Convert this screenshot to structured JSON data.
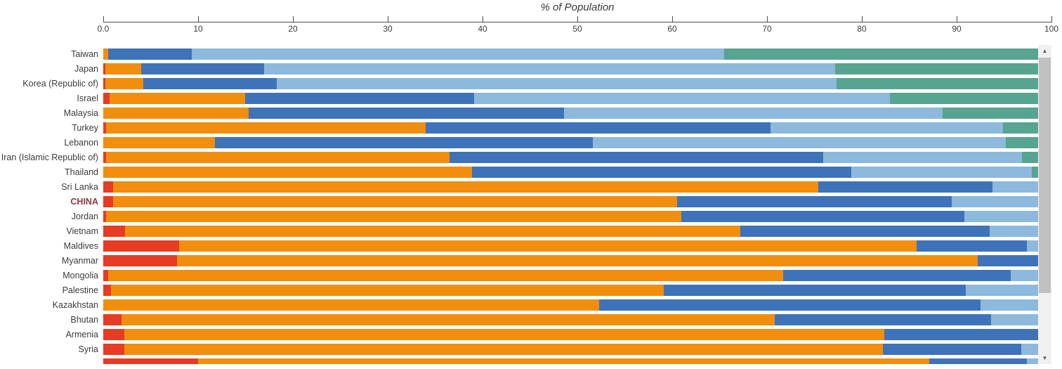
{
  "title": "% of Population",
  "axis": {
    "min": 0,
    "max": 100,
    "tick_labels": [
      "0.0",
      "10",
      "20",
      "30",
      "40",
      "50",
      "60",
      "70",
      "80",
      "90",
      "100"
    ]
  },
  "colors": {
    "red": "#e73b23",
    "orange": "#f28e0d",
    "dark_blue": "#3e73b9",
    "light_blue": "#8cb9dc",
    "green": "#57a491",
    "highlight_label": "#8b3a3e",
    "label": "#3b3b3b",
    "scrollbar_track": "#f1f1f1",
    "scrollbar_thumb": "#c1c1c1"
  },
  "scrollbar": {
    "up_icon": "▲",
    "down_icon": "▼"
  },
  "chart_data": {
    "type": "bar",
    "stacked": true,
    "orientation": "horizontal",
    "title": "% of Population",
    "xlabel": "% of Population",
    "xlim": [
      0,
      100
    ],
    "grid": false,
    "legend": "none (no legend visible)",
    "segments": [
      "red",
      "orange",
      "dark-blue",
      "light-blue",
      "green"
    ],
    "segment_colors": [
      "#e73b23",
      "#f28e0d",
      "#3e73b9",
      "#8cb9dc",
      "#57a491"
    ],
    "rows": [
      {
        "label": "Taiwan",
        "highlight": false,
        "values": [
          0,
          0.5,
          8.8,
          56.2,
          33.1
        ]
      },
      {
        "label": "Japan",
        "highlight": false,
        "values": [
          0.2,
          3.8,
          13.0,
          60.2,
          21.4
        ]
      },
      {
        "label": "Korea (Republic of)",
        "highlight": false,
        "values": [
          0.2,
          4.0,
          14.1,
          59.0,
          21.3
        ]
      },
      {
        "label": "Israel",
        "highlight": false,
        "values": [
          0.7,
          14.3,
          24.1,
          43.9,
          15.6
        ]
      },
      {
        "label": "Malaysia",
        "highlight": false,
        "values": [
          0,
          15.3,
          33.3,
          39.9,
          10.1
        ]
      },
      {
        "label": "Turkey",
        "highlight": false,
        "values": [
          0.3,
          33.7,
          36.4,
          24.5,
          3.7
        ]
      },
      {
        "label": "Lebanon",
        "highlight": false,
        "values": [
          0,
          11.8,
          39.8,
          43.6,
          3.4
        ]
      },
      {
        "label": "Iran (Islamic Republic of)",
        "highlight": false,
        "values": [
          0.3,
          36.2,
          39.4,
          21.0,
          1.7
        ]
      },
      {
        "label": "Thailand",
        "highlight": false,
        "values": [
          0,
          38.9,
          40.0,
          19.0,
          0.7
        ]
      },
      {
        "label": "Sri Lanka",
        "highlight": false,
        "values": [
          1.0,
          74.4,
          18.4,
          4.8,
          0
        ]
      },
      {
        "label": "CHINA",
        "highlight": true,
        "values": [
          1.0,
          59.5,
          29.0,
          9.1,
          0
        ]
      },
      {
        "label": "Jordan",
        "highlight": false,
        "values": [
          0.3,
          60.7,
          29.8,
          7.8,
          0
        ]
      },
      {
        "label": "Vietnam",
        "highlight": false,
        "values": [
          2.3,
          64.9,
          26.3,
          5.1,
          0
        ]
      },
      {
        "label": "Maldives",
        "highlight": false,
        "values": [
          8.0,
          77.8,
          11.6,
          1.2,
          0
        ]
      },
      {
        "label": "Myanmar",
        "highlight": false,
        "values": [
          7.8,
          84.4,
          6.4,
          0,
          0
        ]
      },
      {
        "label": "Mongolia",
        "highlight": false,
        "values": [
          0.5,
          71.2,
          24.0,
          2.9,
          0
        ]
      },
      {
        "label": "Palestine",
        "highlight": false,
        "values": [
          0.8,
          58.3,
          31.9,
          7.6,
          0
        ]
      },
      {
        "label": "Kazakhstan",
        "highlight": false,
        "values": [
          0,
          52.3,
          40.2,
          6.1,
          0
        ]
      },
      {
        "label": "Bhutan",
        "highlight": false,
        "values": [
          1.9,
          68.9,
          22.8,
          5.0,
          0
        ]
      },
      {
        "label": "Armenia",
        "highlight": false,
        "values": [
          2.2,
          80.2,
          16.2,
          0,
          0
        ]
      },
      {
        "label": "Syria",
        "highlight": false,
        "values": [
          2.2,
          80.0,
          14.6,
          1.8,
          0
        ]
      },
      {
        "label": "",
        "highlight": false,
        "values": [
          10.0,
          77.1,
          10.3,
          1.2,
          0
        ]
      }
    ]
  }
}
